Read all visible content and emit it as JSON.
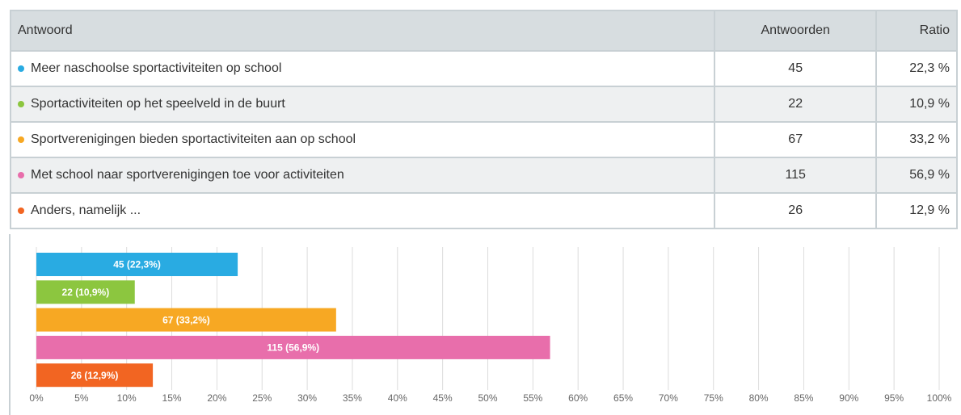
{
  "table": {
    "header": [
      "Antwoord",
      "Antwoorden",
      "Ratio"
    ],
    "rows": [
      [
        "Meer naschoolse sportactiviteiten op school",
        "45",
        "22,3 %"
      ],
      [
        "Sportactiviteiten op het speelveld in de buurt",
        "22",
        "10,9 %"
      ],
      [
        "Sportverenigingen bieden sportactiviteiten aan op school",
        "67",
        "33,2 %"
      ],
      [
        "Met school naar sportverenigingen toe voor activiteiten",
        "115",
        "56,9 %"
      ],
      [
        "Anders, namelijk ...",
        "26",
        "12,9 %"
      ]
    ]
  },
  "chart_data": {
    "type": "hbar",
    "values": [
      22.3,
      10.9,
      33.2,
      56.9,
      12.9
    ],
    "value_labels": [
      "45 (22,3%)",
      "22 (10,9%)",
      "67 (33,2%)",
      "115 (56,9%)",
      "26 (12,9%)"
    ],
    "colors": [
      "#29abe2",
      "#8cc63f",
      "#f7a823",
      "#e86eab",
      "#f26522"
    ],
    "xlim": [
      0,
      100
    ],
    "xticks": [
      {
        "value": 0,
        "label": "0%"
      },
      {
        "value": 5,
        "label": "5%"
      },
      {
        "value": 10,
        "label": "10%"
      },
      {
        "value": 15,
        "label": "15%"
      },
      {
        "value": 20,
        "label": "20%"
      },
      {
        "value": 25,
        "label": "25%"
      },
      {
        "value": 30,
        "label": "30%"
      },
      {
        "value": 35,
        "label": "35%"
      },
      {
        "value": 40,
        "label": "40%"
      },
      {
        "value": 45,
        "label": "45%"
      },
      {
        "value": 50,
        "label": "50%"
      },
      {
        "value": 55,
        "label": "55%"
      },
      {
        "value": 60,
        "label": "60%"
      },
      {
        "value": 65,
        "label": "65%"
      },
      {
        "value": 70,
        "label": "70%"
      },
      {
        "value": 75,
        "label": "75%"
      },
      {
        "value": 80,
        "label": "80%"
      },
      {
        "value": 85,
        "label": "85%"
      },
      {
        "value": 90,
        "label": "90%"
      },
      {
        "value": 95,
        "label": "95%"
      },
      {
        "value": 100,
        "label": "100%"
      }
    ],
    "grid": true
  }
}
